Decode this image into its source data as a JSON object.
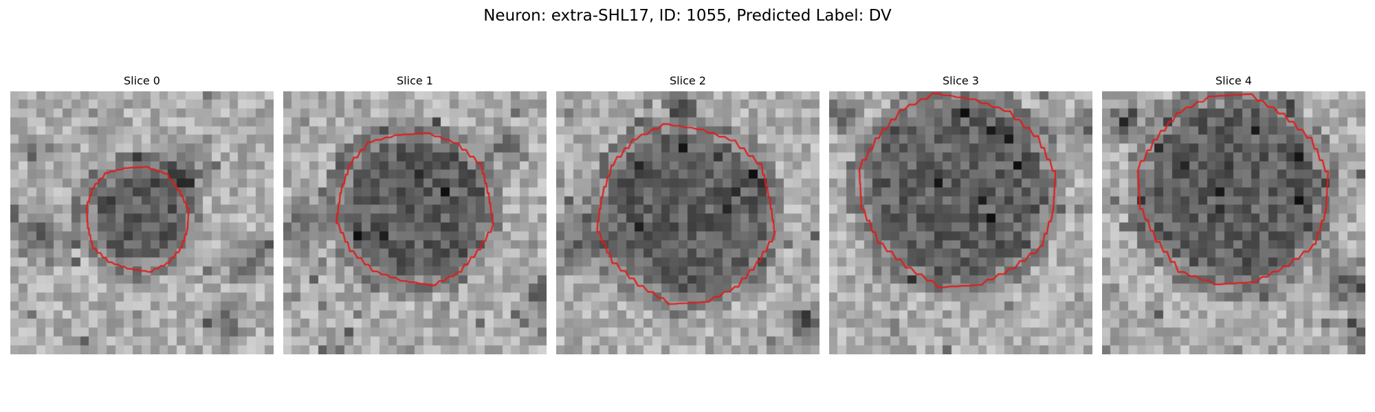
{
  "figure": {
    "title": "Neuron: extra-SHL17, ID: 1055, Predicted Label: DV",
    "outline_color": "#e11b1b"
  },
  "slices": [
    {
      "label": "Slice 0"
    },
    {
      "label": "Slice 1"
    },
    {
      "label": "Slice 2"
    },
    {
      "label": "Slice 3"
    },
    {
      "label": "Slice 4"
    }
  ]
}
